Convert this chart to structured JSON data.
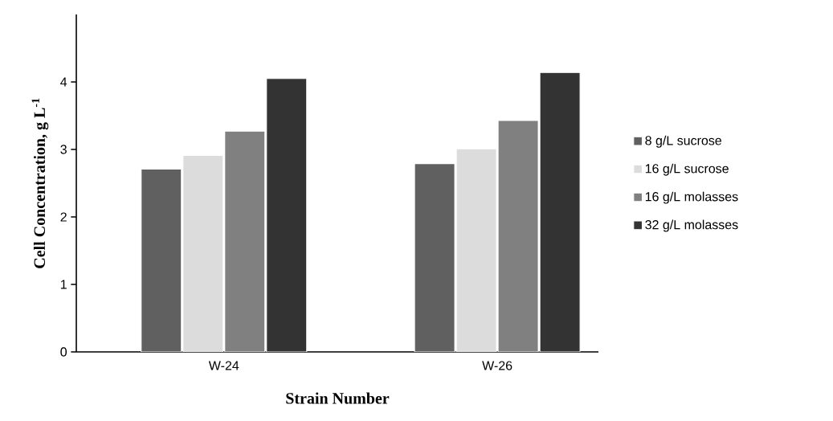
{
  "chart_data": {
    "type": "bar",
    "xlabel": "Strain Number",
    "ylabel": "Cell Concentration, g L$^{-1}$",
    "categories": [
      "W-24",
      "W-26"
    ],
    "series": [
      {
        "name": "8 g/L sucrose",
        "color": "#606060",
        "values": [
          2.71,
          2.79
        ]
      },
      {
        "name": "16 g/L sucrose",
        "color": "#dcdcdc",
        "values": [
          2.91,
          3.01
        ]
      },
      {
        "name": "16 g/L molasses",
        "color": "#808080",
        "values": [
          3.27,
          3.43
        ]
      },
      {
        "name": "32 g/L molasses",
        "color": "#333333",
        "values": [
          4.05,
          4.14
        ]
      }
    ],
    "ylim": [
      0,
      5
    ],
    "yticks": [
      0,
      1,
      2,
      3,
      4
    ],
    "grid": false,
    "legend": "right"
  }
}
